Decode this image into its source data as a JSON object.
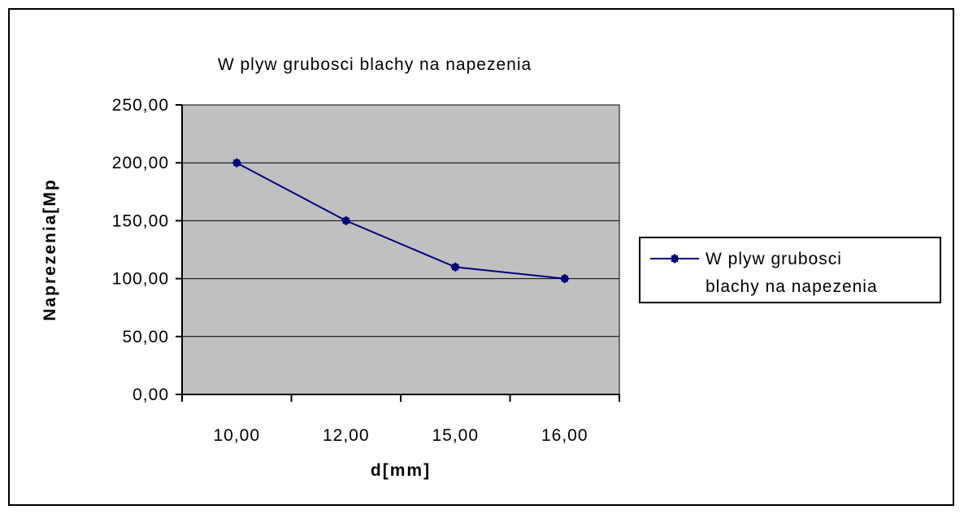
{
  "chart_data": {
    "type": "line",
    "title": "W plyw grubosci blachy na napezenia",
    "xlabel": "d[mm]",
    "ylabel": "Naprezenia[Mp",
    "categories": [
      "10,00",
      "12,00",
      "15,00",
      "16,00"
    ],
    "series": [
      {
        "name": "W plyw grubosci blachy na napezenia",
        "name_lines": [
          "W plyw grubosci",
          "blachy na napezenia"
        ],
        "values": [
          200,
          150,
          110,
          100
        ],
        "color": "#000080"
      }
    ],
    "ylim": [
      0,
      250
    ],
    "yticks": [
      0,
      50,
      100,
      150,
      200,
      250
    ],
    "ytick_labels": [
      "0,00",
      "50,00",
      "100,00",
      "150,00",
      "200,00",
      "250,00"
    ],
    "grid": true,
    "legend_position": "right",
    "plot_background": "#c0c0c0"
  }
}
